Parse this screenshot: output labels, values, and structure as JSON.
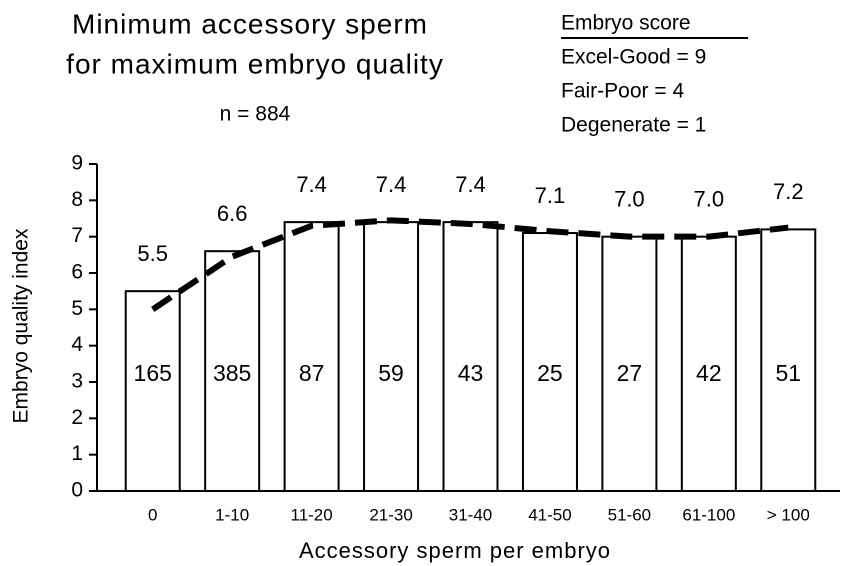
{
  "chart_data": {
    "type": "bar",
    "title": [
      "Minimum accessory sperm",
      "for maximum embryo quality"
    ],
    "subtitle": "n = 884",
    "legend_title": "Embryo score",
    "notes": [
      "Excel-Good = 9",
      "Fair-Poor = 4",
      "Degenerate = 1"
    ],
    "x_label": "Accessory sperm per embryo",
    "y_label": "Embryo quality index",
    "categories": [
      "0",
      "1-10",
      "11-20",
      "21-30",
      "31-40",
      "41-50",
      "51-60",
      "61-100",
      "> 100"
    ],
    "values": [
      5.5,
      6.6,
      7.4,
      7.4,
      7.4,
      7.1,
      7.0,
      7.0,
      7.2
    ],
    "value_labels": [
      "5.5",
      "6.6",
      "7.4",
      "7.4",
      "7.4",
      "7.1",
      "7.0",
      "7.0",
      "7.2"
    ],
    "counts": [
      165,
      385,
      87,
      59,
      43,
      25,
      27,
      42,
      51
    ],
    "trend": [
      5.0,
      6.45,
      7.3,
      7.45,
      7.35,
      7.15,
      7.0,
      7.0,
      7.25
    ],
    "color": "#ffffff",
    "ylim": [
      0,
      9
    ],
    "yticks": [
      0,
      1,
      2,
      3,
      4,
      5,
      6,
      7,
      8,
      9
    ]
  }
}
